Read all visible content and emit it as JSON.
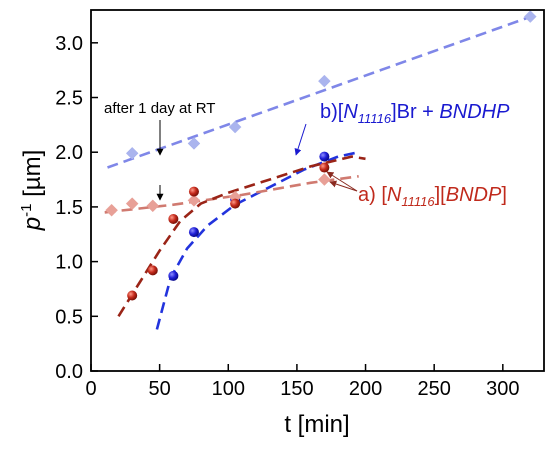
{
  "chart_data": {
    "type": "scatter",
    "xlabel": "t [min]",
    "ylabel_base": "p",
    "ylabel_sup": "-1",
    "ylabel_unit": " [µm]",
    "xlim": [
      0,
      330
    ],
    "ylim": [
      0.0,
      3.3
    ],
    "xticks": [
      0,
      50,
      100,
      150,
      200,
      250,
      300
    ],
    "yticks": [
      "0.0",
      "0.5",
      "1.0",
      "1.5",
      "2.0",
      "2.5",
      "3.0"
    ],
    "grid": false,
    "series": [
      {
        "marker": "diamond",
        "color": "#aab4ee",
        "line_color": "#7f87e8",
        "points": [
          [
            30,
            1.99
          ],
          [
            75,
            2.08
          ],
          [
            105,
            2.23
          ],
          [
            170,
            2.65
          ],
          [
            320,
            3.24
          ]
        ],
        "fit": [
          [
            12,
            1.86
          ],
          [
            325,
            3.26
          ]
        ]
      },
      {
        "marker": "sphere",
        "color": "#2222cc",
        "line_color": "#2233dd",
        "points": [
          [
            60,
            0.87
          ],
          [
            75,
            1.27
          ],
          [
            105,
            1.57
          ],
          [
            170,
            1.96
          ]
        ],
        "fit": [
          [
            48,
            0.38
          ],
          [
            58,
            0.85
          ],
          [
            70,
            1.12
          ],
          [
            85,
            1.33
          ],
          [
            105,
            1.52
          ],
          [
            130,
            1.68
          ],
          [
            155,
            1.84
          ],
          [
            180,
            1.96
          ],
          [
            195,
            2.0
          ]
        ]
      },
      {
        "marker": "diamond",
        "color": "#e8a097",
        "line_color": "#d07a70",
        "points": [
          [
            15,
            1.47
          ],
          [
            30,
            1.53
          ],
          [
            45,
            1.51
          ],
          [
            75,
            1.56
          ],
          [
            105,
            1.59
          ],
          [
            170,
            1.75
          ]
        ],
        "fit": [
          [
            10,
            1.45
          ],
          [
            60,
            1.52
          ],
          [
            110,
            1.61
          ],
          [
            160,
            1.72
          ],
          [
            195,
            1.78
          ]
        ]
      },
      {
        "marker": "sphere",
        "color": "#c0281e",
        "line_color": "#9a2417",
        "points": [
          [
            30,
            0.69
          ],
          [
            45,
            0.92
          ],
          [
            60,
            1.39
          ],
          [
            75,
            1.64
          ],
          [
            105,
            1.53
          ],
          [
            170,
            1.86
          ]
        ],
        "fit": [
          [
            20,
            0.5
          ],
          [
            35,
            0.8
          ],
          [
            50,
            1.1
          ],
          [
            65,
            1.37
          ],
          [
            80,
            1.53
          ],
          [
            100,
            1.63
          ],
          [
            130,
            1.75
          ],
          [
            160,
            1.87
          ],
          [
            190,
            1.96
          ],
          [
            200,
            1.94
          ]
        ]
      }
    ],
    "annotations": {
      "note": "after 1 day at RT",
      "label_b_prefix": "b)[",
      "label_b_sub": "N",
      "label_b_subscript": "11116",
      "label_b_mid": "]Br + ",
      "label_b_end": "BNDHP",
      "label_b_color": "#1a1ad0",
      "label_a_prefix": "a) [",
      "label_a_sub": "N",
      "label_a_subscript": "11116",
      "label_a_mid": "][",
      "label_a_end": "BNDP",
      "label_a_close": "]",
      "label_a_color": "#c02a1c"
    }
  }
}
